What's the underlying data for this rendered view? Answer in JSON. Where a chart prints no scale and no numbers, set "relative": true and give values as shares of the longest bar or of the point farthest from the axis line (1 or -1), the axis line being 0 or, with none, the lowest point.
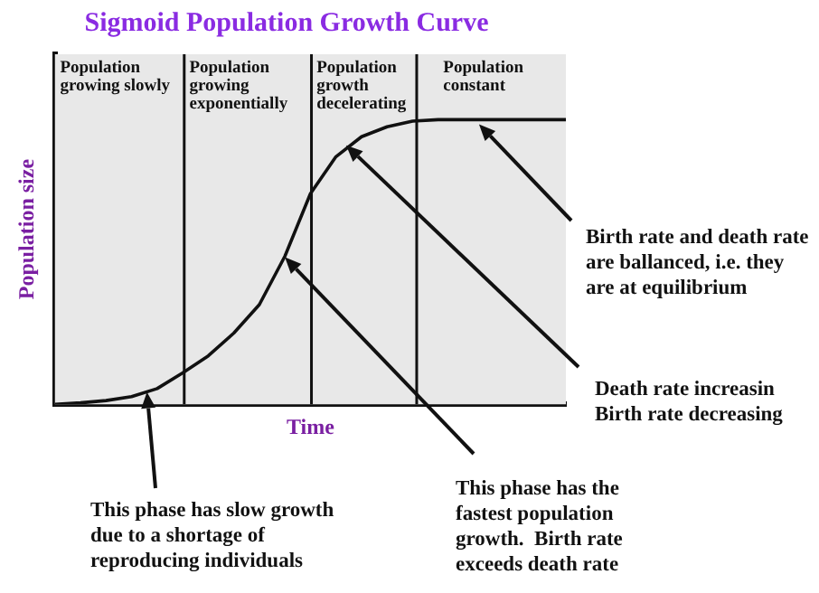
{
  "chart_data": {
    "type": "line",
    "title": "Sigmoid Population Growth Curve",
    "xlabel": "Time",
    "ylabel": "Population size",
    "relative": true,
    "grid": false,
    "legend": false,
    "marker": "none",
    "line_style": "solid",
    "categories": [
      null,
      null,
      null,
      null,
      null,
      null,
      null,
      null,
      null,
      null,
      null,
      null,
      null,
      null,
      null,
      null,
      null,
      null,
      null,
      null,
      null
    ],
    "series": [
      {
        "color": "#111111",
        "values": [
          0,
          0.005,
          0.013,
          0.027,
          0.055,
          0.11,
          0.17,
          0.25,
          0.35,
          0.52,
          0.74,
          0.87,
          0.94,
          0.975,
          0.995,
          1,
          1,
          1,
          1,
          1,
          1
        ]
      }
    ],
    "annotations": [
      "Population growing slowly",
      "Population growing exponentially",
      "Population growth decelerating",
      "Population constant",
      "This phase has slow growth due to a shortage of reproducing individuals",
      "This phase has the fastest population growth.  Birth rate exceeds death rate",
      "Death rate increasin Birth rate decreasing",
      "Birth rate and death rate are ballanced, i.e. they are at equilibrium"
    ]
  }
}
